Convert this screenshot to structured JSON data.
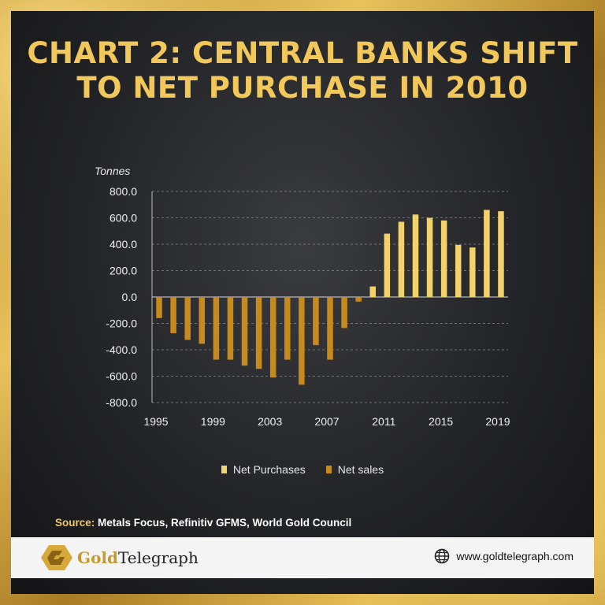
{
  "title": {
    "line1": "CHART 2: CENTRAL BANKS SHIFT",
    "line2": "TO NET PURCHASE IN 2010"
  },
  "chart_data": {
    "type": "bar",
    "ylabel": "Tonnes",
    "ylim": [
      -800,
      800
    ],
    "y_ticks": [
      "800.0",
      "600.0",
      "400.0",
      "200.0",
      "0.0",
      "-200.0",
      "-400.0",
      "-600.0",
      "-800.0"
    ],
    "x_ticks": [
      "1995",
      "1999",
      "2003",
      "2007",
      "2011",
      "2015",
      "2019"
    ],
    "categories": [
      1995,
      1996,
      1997,
      1998,
      1999,
      2000,
      2001,
      2002,
      2003,
      2004,
      2005,
      2006,
      2007,
      2008,
      2009,
      2010,
      2011,
      2012,
      2013,
      2014,
      2015,
      2016,
      2017,
      2018,
      2019
    ],
    "series": [
      {
        "name": "Net Purchases",
        "color": "#f2d26e",
        "values": [
          null,
          null,
          null,
          null,
          null,
          null,
          null,
          null,
          null,
          null,
          null,
          null,
          null,
          null,
          null,
          80,
          480,
          570,
          625,
          600,
          580,
          395,
          375,
          660,
          650
        ]
      },
      {
        "name": "Net sales",
        "color": "#c98a1c",
        "values": [
          -160,
          -275,
          -325,
          -355,
          -475,
          -475,
          -520,
          -545,
          -610,
          -475,
          -665,
          -365,
          -475,
          -235,
          -35,
          null,
          null,
          null,
          null,
          null,
          null,
          null,
          null,
          null,
          null
        ]
      }
    ],
    "grid": "horizontal dashed",
    "legend": "bottom-center"
  },
  "legend": {
    "items": [
      {
        "label": "Net Purchases",
        "color": "#f2d26e"
      },
      {
        "label": "Net sales",
        "color": "#c98a1c"
      }
    ]
  },
  "source": {
    "label": "Source:",
    "text": "Metals Focus, Refinitiv GFMS, World Gold Council"
  },
  "footer": {
    "brand_part1": "Gold",
    "brand_part2": "Telegraph",
    "website": "www.goldtelegraph.com"
  },
  "colors": {
    "title": "#f3c85a",
    "accent_gold": "#c79a2e",
    "panel_dark": "#232427"
  }
}
